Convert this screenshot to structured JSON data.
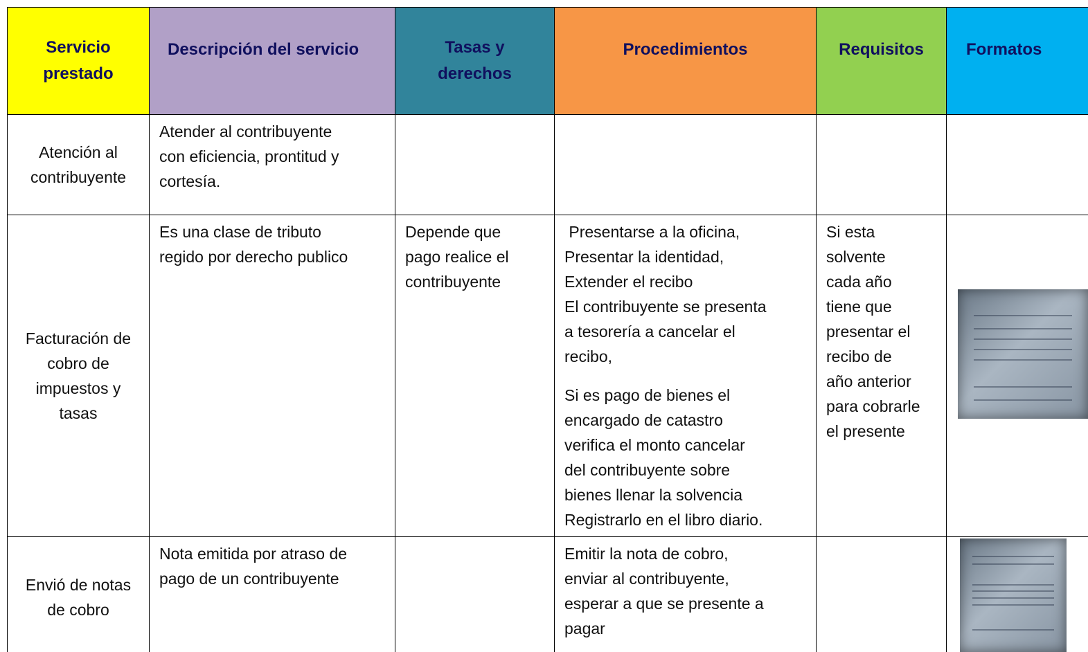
{
  "table": {
    "header": [
      [
        "Servicio",
        "prestado"
      ],
      [
        "Descripción del servicio"
      ],
      [
        "Tasas y",
        "derechos"
      ],
      [
        "Procedimientos"
      ],
      [
        "Requisitos"
      ],
      [
        "Formatos"
      ]
    ],
    "rows": [
      [
        [
          [
            "Atención al",
            "contribuyente"
          ]
        ],
        [
          [
            "Atender al contribuyente",
            "con eficiencia, prontitud y",
            "cortesía."
          ]
        ],
        [],
        [],
        [],
        []
      ],
      [
        [
          [
            "Facturación de",
            "cobro de",
            "impuestos y",
            "tasas"
          ]
        ],
        [
          [
            "Es una clase de tributo",
            "regido por derecho publico"
          ]
        ],
        [
          [
            "Depende que",
            "pago realice el",
            "contribuyente"
          ]
        ],
        [
          [
            " Presentarse a la oficina,",
            "Presentar la identidad,",
            "Extender el recibo",
            "El contribuyente se presenta",
            "a tesorería a cancelar el",
            "recibo,"
          ],
          [
            "Si es pago de bienes el",
            "encargado de catastro",
            "verifica el monto cancelar",
            "del contribuyente sobre",
            "bienes llenar la solvencia",
            "Registrarlo en el libro diario."
          ]
        ],
        [
          [
            "Si esta",
            "solvente",
            "cada año",
            "tiene que",
            "presentar el",
            "recibo de",
            "año anterior",
            "para cobrarle",
            "el presente"
          ]
        ],
        []
      ],
      [
        [
          [
            "Envió de notas",
            "de cobro"
          ]
        ],
        [
          [
            "Nota emitida por atraso de",
            "pago de un contribuyente"
          ]
        ],
        [],
        [
          [
            "Emitir la nota de cobro,",
            "enviar al contribuyente,",
            "esperar a que se presente a",
            "pagar"
          ]
        ],
        [],
        []
      ]
    ]
  }
}
